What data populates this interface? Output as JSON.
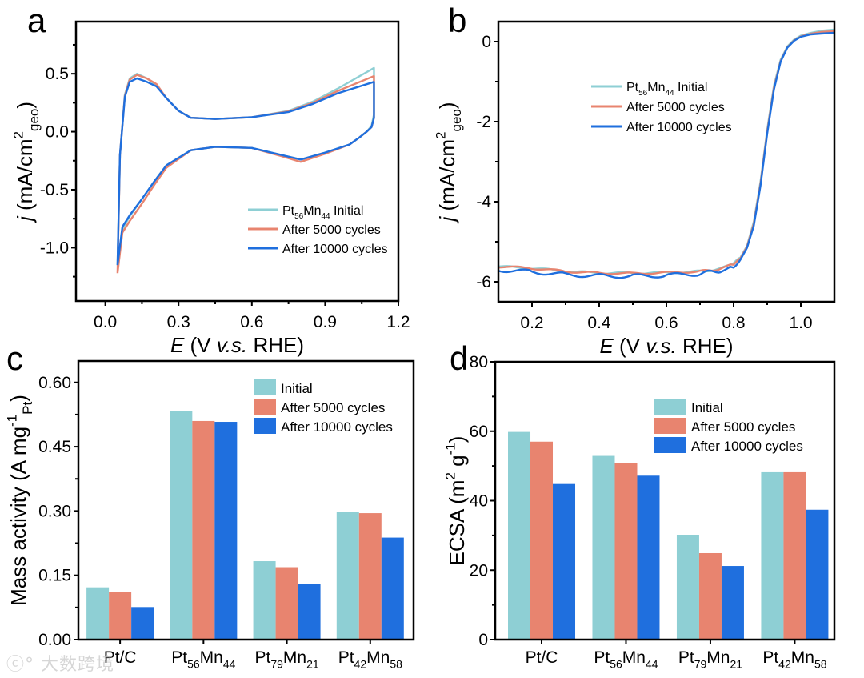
{
  "colors": {
    "initial": "#8ecfd4",
    "c5000": "#e8846f",
    "c10000": "#1f6fde",
    "axis": "#000000"
  },
  "watermark": "大数跨境",
  "chart_data": [
    {
      "panel": "a",
      "type": "line",
      "xlabel": {
        "italic": "E",
        "pre": " (V ",
        "italic2": "v.s.",
        "post": " RHE)"
      },
      "ylabel": {
        "italic": "j",
        "text": " (mA/cm",
        "sup": "2",
        "sub": "geo",
        "close": ")"
      },
      "xlim": [
        -0.12,
        1.2
      ],
      "ylim": [
        -1.46,
        0.95
      ],
      "xticks": [
        "0.0",
        "0.3",
        "0.6",
        "0.9",
        "1.2"
      ],
      "xtick_values": [
        0.0,
        0.3,
        0.6,
        0.9,
        1.2
      ],
      "yticks": [
        "0.5",
        "0.0",
        "-0.5",
        "-1.0"
      ],
      "ytick_values": [
        0.5,
        0.0,
        -0.5,
        -1.0
      ],
      "legend_position": "bottom-right",
      "series": [
        {
          "name": [
            "Pt",
            "56",
            "Mn",
            "44",
            " Initial"
          ],
          "color_key": "initial",
          "x": [
            0.05,
            0.06,
            0.08,
            0.1,
            0.13,
            0.17,
            0.21,
            0.25,
            0.3,
            0.35,
            0.45,
            0.6,
            0.75,
            0.85,
            0.95,
            1.1,
            1.1,
            1.09,
            1.07,
            1.04,
            1.0,
            0.9,
            0.8,
            0.72,
            0.6,
            0.45,
            0.35,
            0.25,
            0.2,
            0.15,
            0.1,
            0.07,
            0.05
          ],
          "y": [
            -1.15,
            -0.2,
            0.32,
            0.46,
            0.5,
            0.46,
            0.4,
            0.29,
            0.18,
            0.12,
            0.11,
            0.125,
            0.18,
            0.26,
            0.37,
            0.55,
            0.15,
            0.05,
            0.0,
            -0.05,
            -0.11,
            -0.18,
            -0.24,
            -0.2,
            -0.14,
            -0.13,
            -0.16,
            -0.29,
            -0.43,
            -0.58,
            -0.73,
            -0.84,
            -1.15
          ]
        },
        {
          "name": [
            "After 5000 cycles"
          ],
          "color_key": "c5000",
          "x": [
            0.05,
            0.06,
            0.08,
            0.1,
            0.13,
            0.17,
            0.21,
            0.25,
            0.3,
            0.35,
            0.45,
            0.6,
            0.75,
            0.85,
            0.95,
            1.1,
            1.1,
            1.09,
            1.07,
            1.04,
            1.0,
            0.9,
            0.8,
            0.72,
            0.6,
            0.45,
            0.35,
            0.25,
            0.2,
            0.15,
            0.1,
            0.07,
            0.05
          ],
          "y": [
            -1.22,
            -0.2,
            0.31,
            0.45,
            0.49,
            0.46,
            0.41,
            0.29,
            0.18,
            0.12,
            0.11,
            0.125,
            0.175,
            0.25,
            0.35,
            0.48,
            0.12,
            0.04,
            0.0,
            -0.05,
            -0.11,
            -0.19,
            -0.26,
            -0.21,
            -0.14,
            -0.13,
            -0.16,
            -0.31,
            -0.46,
            -0.62,
            -0.77,
            -0.87,
            -1.22
          ]
        },
        {
          "name": [
            "After 10000 cycles"
          ],
          "color_key": "c10000",
          "x": [
            0.05,
            0.06,
            0.08,
            0.1,
            0.13,
            0.17,
            0.21,
            0.25,
            0.3,
            0.35,
            0.45,
            0.6,
            0.75,
            0.85,
            0.95,
            1.1,
            1.1,
            1.09,
            1.07,
            1.04,
            1.0,
            0.9,
            0.8,
            0.72,
            0.6,
            0.45,
            0.35,
            0.25,
            0.2,
            0.15,
            0.1,
            0.07,
            0.05
          ],
          "y": [
            -1.15,
            -0.2,
            0.3,
            0.43,
            0.46,
            0.43,
            0.39,
            0.29,
            0.18,
            0.12,
            0.11,
            0.125,
            0.17,
            0.24,
            0.33,
            0.43,
            0.12,
            0.04,
            0.0,
            -0.05,
            -0.11,
            -0.18,
            -0.24,
            -0.2,
            -0.14,
            -0.13,
            -0.16,
            -0.29,
            -0.43,
            -0.58,
            -0.72,
            -0.82,
            -1.15
          ]
        }
      ]
    },
    {
      "panel": "b",
      "type": "line",
      "xlabel": {
        "italic": "E",
        "pre": " (V ",
        "italic2": "v.s.",
        "post": " RHE)"
      },
      "ylabel": {
        "italic": "j",
        "text": " (mA/cm",
        "sup": "2",
        "sub": "geo",
        "close": ")"
      },
      "xlim": [
        0.1,
        1.1
      ],
      "ylim": [
        -6.5,
        0.5
      ],
      "xticks": [
        "0.2",
        "0.4",
        "0.6",
        "0.8",
        "1.0"
      ],
      "xtick_values": [
        0.2,
        0.4,
        0.6,
        0.8,
        1.0
      ],
      "yticks": [
        "0",
        "-2",
        "-4",
        "-6"
      ],
      "ytick_values": [
        0,
        -2,
        -4,
        -6
      ],
      "legend_position": "top-center",
      "series": [
        {
          "name": [
            "Pt",
            "56",
            "Mn",
            "44",
            " Initial"
          ],
          "color_key": "initial",
          "x": [
            0.1,
            0.2,
            0.3,
            0.4,
            0.5,
            0.6,
            0.7,
            0.76,
            0.8,
            0.82,
            0.84,
            0.86,
            0.88,
            0.9,
            0.92,
            0.94,
            0.96,
            0.98,
            1.0,
            1.03,
            1.06,
            1.1
          ],
          "y": [
            -5.62,
            -5.66,
            -5.74,
            -5.78,
            -5.78,
            -5.77,
            -5.74,
            -5.68,
            -5.55,
            -5.4,
            -5.1,
            -4.5,
            -3.5,
            -2.2,
            -1.1,
            -0.45,
            -0.12,
            0.05,
            0.15,
            0.22,
            0.27,
            0.3
          ]
        },
        {
          "name": [
            "After 5000 cycles"
          ],
          "color_key": "c5000",
          "x": [
            0.1,
            0.2,
            0.3,
            0.4,
            0.5,
            0.6,
            0.7,
            0.76,
            0.8,
            0.82,
            0.84,
            0.86,
            0.88,
            0.9,
            0.92,
            0.94,
            0.96,
            0.98,
            1.0,
            1.03,
            1.06,
            1.1
          ],
          "y": [
            -5.62,
            -5.66,
            -5.74,
            -5.78,
            -5.79,
            -5.77,
            -5.74,
            -5.68,
            -5.56,
            -5.42,
            -5.12,
            -4.55,
            -3.55,
            -2.25,
            -1.15,
            -0.48,
            -0.14,
            0.03,
            0.13,
            0.2,
            0.24,
            0.26
          ]
        },
        {
          "name": [
            "After 10000 cycles"
          ],
          "color_key": "c10000",
          "x": [
            0.1,
            0.2,
            0.3,
            0.4,
            0.5,
            0.6,
            0.7,
            0.76,
            0.8,
            0.82,
            0.84,
            0.86,
            0.88,
            0.9,
            0.92,
            0.94,
            0.96,
            0.98,
            1.0,
            1.03,
            1.06,
            1.1
          ],
          "y": [
            -5.7,
            -5.75,
            -5.82,
            -5.85,
            -5.86,
            -5.84,
            -5.8,
            -5.72,
            -5.6,
            -5.45,
            -5.15,
            -4.6,
            -3.6,
            -2.3,
            -1.2,
            -0.5,
            -0.15,
            0.02,
            0.12,
            0.18,
            0.2,
            0.22
          ]
        }
      ]
    },
    {
      "panel": "c",
      "type": "bar",
      "ylabel": {
        "text": "Mass activity (A mg",
        "sup": "-1",
        "sub": "Pt",
        "close": ")"
      },
      "ylim": [
        0,
        0.65
      ],
      "yticks": [
        "0.00",
        "0.15",
        "0.30",
        "0.45",
        "0.60"
      ],
      "ytick_values": [
        0,
        0.15,
        0.3,
        0.45,
        0.6
      ],
      "categories": [
        [
          "Pt/C"
        ],
        [
          "Pt",
          "56",
          "Mn",
          "44"
        ],
        [
          "Pt",
          "79",
          "Mn",
          "21"
        ],
        [
          "Pt",
          "42",
          "Mn",
          "58"
        ]
      ],
      "legend_position": "top-right",
      "series": [
        {
          "name": "Initial",
          "color_key": "initial",
          "values": [
            0.122,
            0.533,
            0.183,
            0.298
          ]
        },
        {
          "name": "After 5000 cycles",
          "color_key": "c5000",
          "values": [
            0.111,
            0.51,
            0.169,
            0.295
          ]
        },
        {
          "name": "After 10000 cycles",
          "color_key": "c10000",
          "values": [
            0.076,
            0.508,
            0.13,
            0.238
          ]
        }
      ]
    },
    {
      "panel": "d",
      "type": "bar",
      "ylabel": {
        "text": "ECSA (m",
        "sup": "2",
        "mid": " g",
        "sup2": "-1",
        "close": ")"
      },
      "ylim": [
        0,
        80
      ],
      "yticks": [
        "0",
        "20",
        "40",
        "60",
        "80"
      ],
      "ytick_values": [
        0,
        20,
        40,
        60,
        80
      ],
      "categories": [
        [
          "Pt/C"
        ],
        [
          "Pt",
          "56",
          "Mn",
          "44"
        ],
        [
          "Pt",
          "79",
          "Mn",
          "21"
        ],
        [
          "Pt",
          "42",
          "Mn",
          "58"
        ]
      ],
      "legend_position": "top-right",
      "series": [
        {
          "name": "Initial",
          "color_key": "initial",
          "values": [
            59.8,
            52.9,
            30.2,
            48.2
          ]
        },
        {
          "name": "After 5000 cycles",
          "color_key": "c5000",
          "values": [
            57.0,
            50.8,
            24.9,
            48.2
          ]
        },
        {
          "name": "After 10000 cycles",
          "color_key": "c10000",
          "values": [
            44.8,
            47.2,
            21.2,
            37.4
          ]
        }
      ]
    }
  ]
}
